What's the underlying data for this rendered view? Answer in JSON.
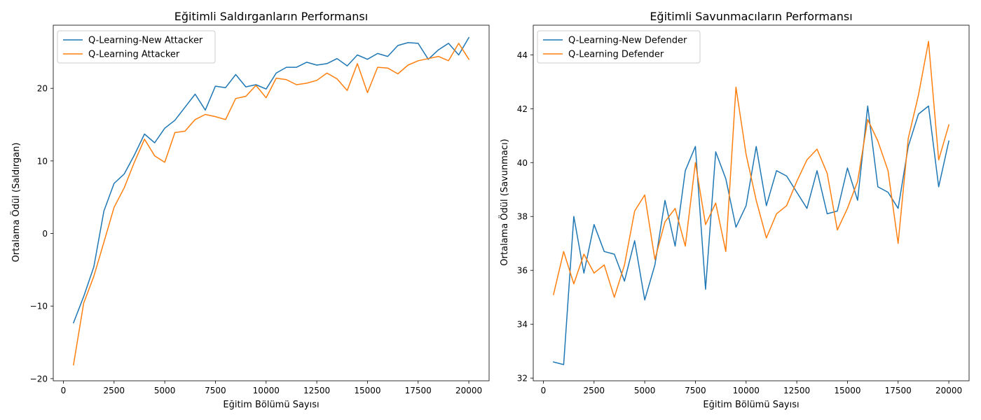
{
  "colors": {
    "blue": "#1f77b4",
    "orange": "#ff7f0e"
  },
  "chart_data": [
    {
      "type": "line",
      "title": "Eğitimli Saldırganların Performansı",
      "xlabel": "Eğitim Bölümü Sayısı",
      "ylabel": "Ortalama Ödül (Saldırgan)",
      "xlim": [
        -500,
        21000
      ],
      "ylim": [
        -20.3,
        28.7
      ],
      "xticks": [
        0,
        2500,
        5000,
        7500,
        10000,
        12500,
        15000,
        17500,
        20000
      ],
      "yticks": [
        -20,
        -10,
        0,
        10,
        20
      ],
      "ytick_labels": [
        "−20",
        "−10",
        "0",
        "10",
        "20"
      ],
      "legend_position": "upper left",
      "x": [
        500,
        1000,
        1500,
        2000,
        2500,
        3000,
        3500,
        4000,
        4500,
        5000,
        5500,
        6000,
        6500,
        7000,
        7500,
        8000,
        8500,
        9000,
        9500,
        10000,
        10500,
        11000,
        11500,
        12000,
        12500,
        13000,
        13500,
        14000,
        14500,
        15000,
        15500,
        16000,
        16500,
        17000,
        17500,
        18000,
        18500,
        19000,
        19500,
        20000
      ],
      "series": [
        {
          "name": "Q-Learning-New Attacker",
          "color": "#1f77b4",
          "values": [
            -12.3,
            -8.7,
            -4.6,
            3.1,
            6.9,
            8.2,
            10.8,
            13.7,
            12.5,
            14.5,
            15.6,
            17.4,
            19.2,
            17.0,
            20.3,
            20.1,
            21.9,
            20.2,
            20.5,
            19.9,
            22.1,
            22.9,
            22.9,
            23.6,
            23.2,
            23.4,
            24.1,
            23.1,
            24.6,
            24.0,
            24.8,
            24.4,
            25.9,
            26.3,
            26.2,
            24.0,
            25.3,
            26.2,
            24.6,
            27.0
          ]
        },
        {
          "name": "Q-Learning Attacker",
          "color": "#ff7f0e",
          "values": [
            -18.1,
            -9.6,
            -5.9,
            -1.2,
            3.6,
            6.3,
            9.8,
            13.0,
            10.7,
            9.8,
            13.9,
            14.1,
            15.7,
            16.4,
            16.1,
            15.7,
            18.6,
            18.9,
            20.4,
            18.7,
            21.4,
            21.2,
            20.5,
            20.7,
            21.1,
            22.1,
            21.3,
            19.7,
            23.4,
            19.4,
            22.9,
            22.8,
            22.0,
            23.2,
            23.8,
            24.1,
            24.4,
            23.8,
            26.2,
            24.0
          ]
        }
      ]
    },
    {
      "type": "line",
      "title": "Eğitimli Savunmacıların Performansı",
      "xlabel": "Eğitim Bölümü Sayısı",
      "ylabel": "Ortalama Ödül (Savunmacı)",
      "xlim": [
        -500,
        21000
      ],
      "ylim": [
        31.9,
        45.1
      ],
      "xticks": [
        0,
        2500,
        5000,
        7500,
        10000,
        12500,
        15000,
        17500,
        20000
      ],
      "yticks": [
        32,
        34,
        36,
        38,
        40,
        42,
        44
      ],
      "ytick_labels": [
        "32",
        "34",
        "36",
        "38",
        "40",
        "42",
        "44"
      ],
      "legend_position": "upper left",
      "x": [
        500,
        1000,
        1500,
        2000,
        2500,
        3000,
        3500,
        4000,
        4500,
        5000,
        5500,
        6000,
        6500,
        7000,
        7500,
        8000,
        8500,
        9000,
        9500,
        10000,
        10500,
        11000,
        11500,
        12000,
        12500,
        13000,
        13500,
        14000,
        14500,
        15000,
        15500,
        16000,
        16500,
        17000,
        17500,
        18000,
        18500,
        19000,
        19500,
        20000
      ],
      "series": [
        {
          "name": "Q-Learning-New Defender",
          "color": "#1f77b4",
          "values": [
            32.6,
            32.5,
            38.0,
            35.9,
            37.7,
            36.7,
            36.6,
            35.6,
            37.1,
            34.9,
            36.2,
            38.6,
            36.9,
            39.7,
            40.6,
            35.3,
            40.4,
            39.4,
            37.6,
            38.4,
            40.6,
            38.4,
            39.7,
            39.5,
            38.9,
            38.3,
            39.7,
            38.1,
            38.2,
            39.8,
            38.6,
            42.1,
            39.1,
            38.9,
            38.3,
            40.6,
            41.8,
            42.1,
            39.1,
            40.8
          ]
        },
        {
          "name": "Q-Learning Defender",
          "color": "#ff7f0e",
          "values": [
            35.1,
            36.7,
            35.5,
            36.6,
            35.9,
            36.2,
            35.0,
            36.2,
            38.2,
            38.8,
            36.4,
            37.8,
            38.3,
            36.9,
            40.0,
            37.7,
            38.5,
            36.7,
            42.8,
            40.3,
            38.6,
            37.2,
            38.1,
            38.4,
            39.3,
            40.1,
            40.5,
            39.6,
            37.5,
            38.3,
            39.3,
            41.6,
            40.8,
            39.7,
            37.0,
            40.9,
            42.5,
            44.5,
            40.1,
            41.4
          ]
        }
      ]
    }
  ]
}
